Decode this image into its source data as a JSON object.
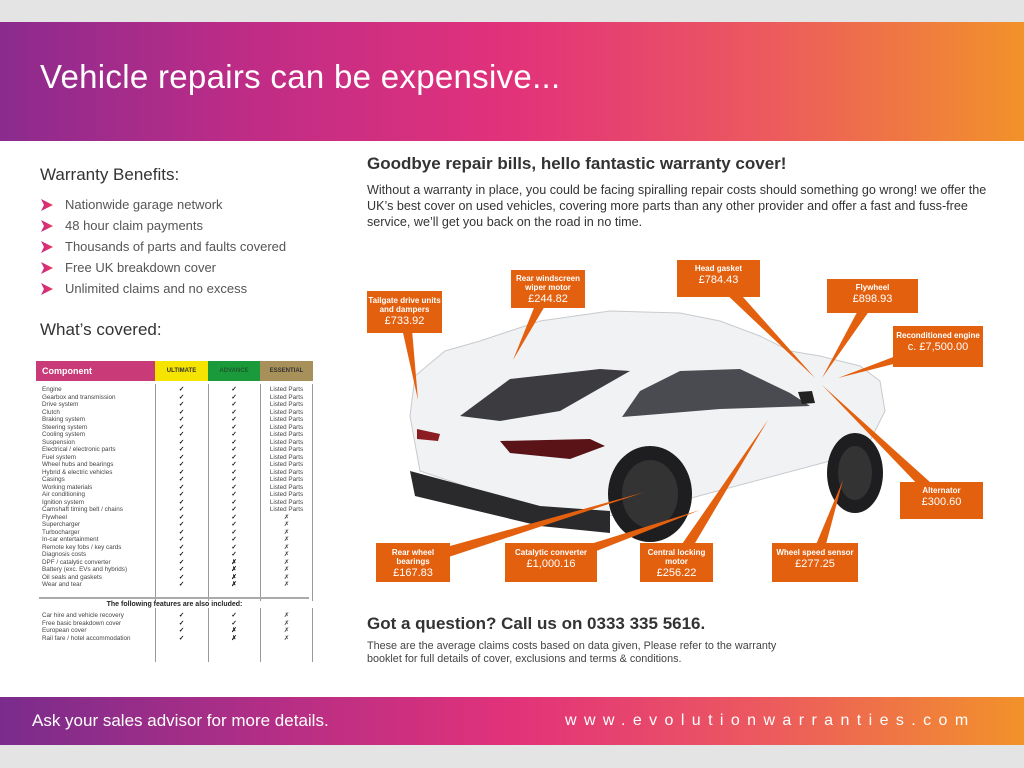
{
  "header": {
    "title": "Vehicle repairs can be expensive..."
  },
  "benefits": {
    "title": "Warranty Benefits:",
    "items": [
      "Nationwide garage network",
      "48 hour claim payments",
      "Thousands of parts and faults covered",
      "Free UK breakdown cover",
      "Unlimited claims and no excess"
    ]
  },
  "covered": {
    "title": "What’s covered:",
    "columns": [
      "Component",
      "ULTIMATE",
      "ADVANCE",
      "ESSENTIAL"
    ],
    "column_colors": [
      "#c93a78",
      "#f5e400",
      "#1b9a3c",
      "#a8905a"
    ],
    "rows": [
      [
        "Engine",
        "✓",
        "✓",
        "Listed Parts"
      ],
      [
        "Gearbox and transmission",
        "✓",
        "✓",
        "Listed Parts"
      ],
      [
        "Drive system",
        "✓",
        "✓",
        "Listed Parts"
      ],
      [
        "Clutch",
        "✓",
        "✓",
        "Listed Parts"
      ],
      [
        "Braking system",
        "✓",
        "✓",
        "Listed Parts"
      ],
      [
        "Steering system",
        "✓",
        "✓",
        "Listed Parts"
      ],
      [
        "Cooling system",
        "✓",
        "✓",
        "Listed Parts"
      ],
      [
        "Suspension",
        "✓",
        "✓",
        "Listed Parts"
      ],
      [
        "Electrical / electronic parts",
        "✓",
        "✓",
        "Listed Parts"
      ],
      [
        "Fuel system",
        "✓",
        "✓",
        "Listed Parts"
      ],
      [
        "Wheel hubs and bearings",
        "✓",
        "✓",
        "Listed Parts"
      ],
      [
        "Hybrid & electric vehicles",
        "✓",
        "✓",
        "Listed Parts"
      ],
      [
        "Casings",
        "✓",
        "✓",
        "Listed Parts"
      ],
      [
        "Working materials",
        "✓",
        "✓",
        "Listed Parts"
      ],
      [
        "Air conditioning",
        "✓",
        "✓",
        "Listed Parts"
      ],
      [
        "Ignition system",
        "✓",
        "✓",
        "Listed Parts"
      ],
      [
        "Camshaft timing belt / chains",
        "✓",
        "✓",
        "Listed Parts"
      ],
      [
        "Flywheel",
        "✓",
        "✓",
        "✗"
      ],
      [
        "Supercharger",
        "✓",
        "✓",
        "✗"
      ],
      [
        "Turbocharger",
        "✓",
        "✓",
        "✗"
      ],
      [
        "In-car entertainment",
        "✓",
        "✓",
        "✗"
      ],
      [
        "Remote key fobs / key cards",
        "✓",
        "✓",
        "✗"
      ],
      [
        "Diagnosis costs",
        "✓",
        "✓",
        "✗"
      ],
      [
        "DPF / catalytic converter",
        "✓",
        "✗",
        "✗"
      ],
      [
        "Battery (exc. EVs and hybrids)",
        "✓",
        "✗",
        "✗"
      ],
      [
        "Oil seals and gaskets",
        "✓",
        "✗",
        "✗"
      ],
      [
        "Wear and tear",
        "✓",
        "✗",
        "✗"
      ]
    ],
    "extras_title": "The following features are also included:",
    "extras": [
      [
        "Car hire and vehicle recovery",
        "✓",
        "✓",
        "✗"
      ],
      [
        "Free basic breakdown cover",
        "✓",
        "✓",
        "✗"
      ],
      [
        "European cover",
        "✓",
        "✗",
        "✗"
      ],
      [
        "Rail fare / hotel accommodation",
        "✓",
        "✗",
        "✗"
      ]
    ]
  },
  "intro": {
    "title": "Goodbye repair bills, hello fantastic warranty cover!",
    "body": "Without a warranty in place, you could be facing spiralling repair costs should something go wrong! we offer the UK’s best cover on used vehicles, covering more parts than any other provider and offer a fast and fuss-free service, we’ll get you back on the road in no time."
  },
  "callouts": [
    {
      "label": "Tailgate drive units and dampers",
      "value": "£733.92"
    },
    {
      "label": "Rear windscreen wiper motor",
      "value": "£244.82"
    },
    {
      "label": "Head gasket",
      "value": "£784.43"
    },
    {
      "label": "Flywheel",
      "value": "£898.93"
    },
    {
      "label": "Reconditioned engine",
      "value": "c. £7,500.00"
    },
    {
      "label": "Alternator",
      "value": "£300.60"
    },
    {
      "label": "Rear wheel bearings",
      "value": "£167.83"
    },
    {
      "label": "Catalytic converter",
      "value": "£1,000.16"
    },
    {
      "label": "Central locking motor",
      "value": "£256.22"
    },
    {
      "label": "Wheel speed sensor",
      "value": "£277.25"
    }
  ],
  "callout_color": "#e3600f",
  "contact": {
    "title": "Got a question? Call us on 0333 335 5616.",
    "note": "These are the average claims costs based on data given, Please refer to the warranty booklet for full details of cover, exclusions and terms & conditions."
  },
  "footer": {
    "cta": "Ask your sales advisor for more details.",
    "url": "www.evolutionwarranties.com"
  }
}
